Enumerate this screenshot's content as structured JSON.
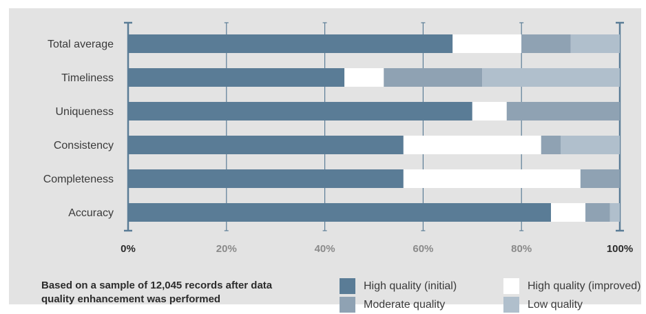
{
  "chart_data": {
    "type": "bar",
    "orientation": "horizontal",
    "stacked": true,
    "categories": [
      "Total average",
      "Timeliness",
      "Uniqueness",
      "Consistency",
      "Completeness",
      "Accuracy"
    ],
    "series": [
      {
        "name": "High quality (initial)",
        "color": "#5a7c96",
        "values": [
          66,
          44,
          70,
          56,
          56,
          86
        ]
      },
      {
        "name": "High quality (improved)",
        "color": "#ffffff",
        "values": [
          14,
          8,
          7,
          28,
          36,
          7
        ]
      },
      {
        "name": "Moderate quality",
        "color": "#8fa2b3",
        "values": [
          10,
          20,
          23,
          4,
          8,
          5
        ]
      },
      {
        "name": "Low quality",
        "color": "#b0bfcc",
        "values": [
          10,
          28,
          0,
          12,
          0,
          2
        ]
      }
    ],
    "xlim": [
      0,
      100
    ],
    "xticks": [
      "0%",
      "20%",
      "40%",
      "60%",
      "80%",
      "100%"
    ],
    "grid": true,
    "legend_position": "bottom-right",
    "note": "Based on a sample of 12,045 records after data quality enhancement was performed"
  }
}
